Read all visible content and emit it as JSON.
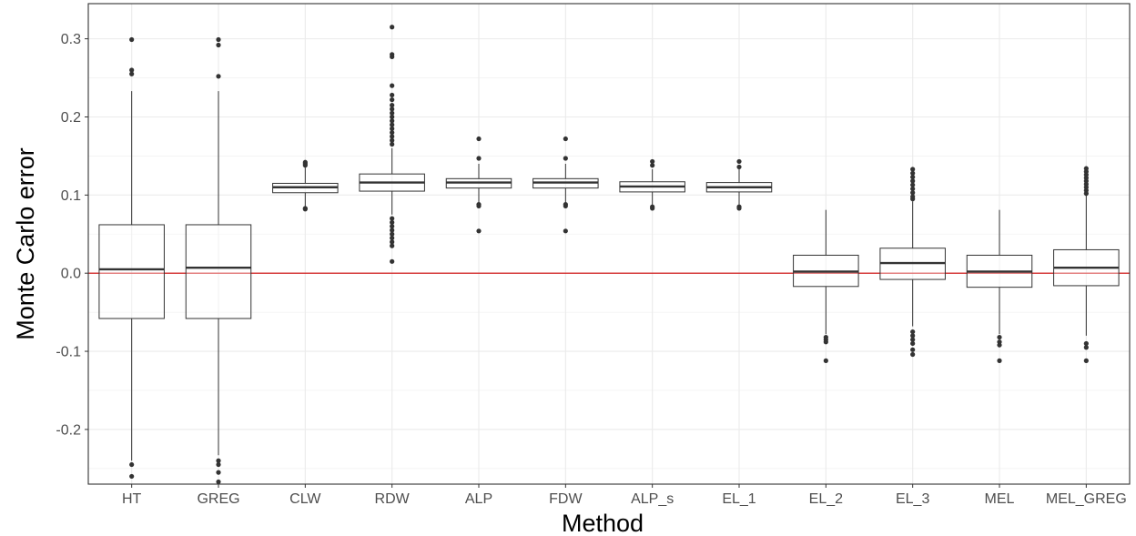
{
  "chart_data": {
    "type": "boxplot",
    "xlabel": "Method",
    "ylabel": "Monte Carlo error",
    "ylim": [
      -0.27,
      0.345
    ],
    "y_ticks": [
      -0.2,
      -0.1,
      0.0,
      0.1,
      0.2,
      0.3
    ],
    "y_tick_labels": [
      "-0.2",
      "-0.1",
      "0.0",
      "0.1",
      "0.2",
      "0.3"
    ],
    "grid": true,
    "reference_line": {
      "y": 0,
      "color": "#cc0000"
    },
    "box_fill": "#ffffff",
    "box_stroke": "#333333",
    "categories": [
      "HT",
      "GREG",
      "CLW",
      "RDW",
      "ALP",
      "FDW",
      "ALP_s",
      "EL_1",
      "EL_2",
      "EL_3",
      "MEL",
      "MEL_GREG"
    ],
    "boxes": [
      {
        "label": "HT",
        "whisker_low": -0.24,
        "q1": -0.058,
        "median": 0.005,
        "q3": 0.062,
        "whisker_high": 0.233,
        "outliers": [
          0.299,
          0.26,
          0.255,
          -0.245,
          -0.26
        ]
      },
      {
        "label": "GREG",
        "whisker_low": -0.233,
        "q1": -0.058,
        "median": 0.007,
        "q3": 0.062,
        "whisker_high": 0.233,
        "outliers": [
          0.299,
          0.292,
          0.252,
          -0.24,
          -0.245,
          -0.255,
          -0.267
        ]
      },
      {
        "label": "CLW",
        "whisker_low": 0.085,
        "q1": 0.103,
        "median": 0.11,
        "q3": 0.115,
        "whisker_high": 0.135,
        "outliers": [
          0.142,
          0.14,
          0.138,
          0.083,
          0.082
        ]
      },
      {
        "label": "RDW",
        "whisker_low": 0.075,
        "q1": 0.105,
        "median": 0.116,
        "q3": 0.127,
        "whisker_high": 0.16,
        "outliers": [
          0.315,
          0.28,
          0.277,
          0.24,
          0.228,
          0.222,
          0.215,
          0.21,
          0.205,
          0.2,
          0.195,
          0.19,
          0.185,
          0.18,
          0.175,
          0.17,
          0.165,
          0.07,
          0.065,
          0.06,
          0.055,
          0.05,
          0.045,
          0.04,
          0.035,
          0.015
        ]
      },
      {
        "label": "ALP",
        "whisker_low": 0.09,
        "q1": 0.109,
        "median": 0.116,
        "q3": 0.121,
        "whisker_high": 0.14,
        "outliers": [
          0.172,
          0.147,
          0.088,
          0.086,
          0.054
        ]
      },
      {
        "label": "FDW",
        "whisker_low": 0.09,
        "q1": 0.109,
        "median": 0.116,
        "q3": 0.121,
        "whisker_high": 0.14,
        "outliers": [
          0.172,
          0.147,
          0.088,
          0.086,
          0.054
        ]
      },
      {
        "label": "ALP_s",
        "whisker_low": 0.087,
        "q1": 0.104,
        "median": 0.111,
        "q3": 0.117,
        "whisker_high": 0.133,
        "outliers": [
          0.143,
          0.138,
          0.085,
          0.083
        ]
      },
      {
        "label": "EL_1",
        "whisker_low": 0.087,
        "q1": 0.104,
        "median": 0.11,
        "q3": 0.116,
        "whisker_high": 0.133,
        "outliers": [
          0.143,
          0.136,
          0.085,
          0.083
        ]
      },
      {
        "label": "EL_2",
        "whisker_low": -0.078,
        "q1": -0.017,
        "median": 0.002,
        "q3": 0.023,
        "whisker_high": 0.081,
        "outliers": [
          -0.082,
          -0.085,
          -0.088,
          -0.112
        ]
      },
      {
        "label": "EL_3",
        "whisker_low": -0.068,
        "q1": -0.008,
        "median": 0.013,
        "q3": 0.032,
        "whisker_high": 0.092,
        "outliers": [
          0.133,
          0.128,
          0.123,
          0.118,
          0.113,
          0.108,
          0.103,
          0.098,
          0.095,
          -0.075,
          -0.08,
          -0.085,
          -0.09,
          -0.098,
          -0.104
        ]
      },
      {
        "label": "MEL",
        "whisker_low": -0.078,
        "q1": -0.018,
        "median": 0.002,
        "q3": 0.023,
        "whisker_high": 0.081,
        "outliers": [
          -0.082,
          -0.088,
          -0.092,
          -0.112
        ]
      },
      {
        "label": "MEL_GREG",
        "whisker_low": -0.08,
        "q1": -0.016,
        "median": 0.007,
        "q3": 0.03,
        "whisker_high": 0.1,
        "outliers": [
          0.134,
          0.13,
          0.126,
          0.122,
          0.118,
          0.114,
          0.11,
          0.106,
          0.102,
          -0.09,
          -0.095,
          -0.112
        ]
      }
    ]
  }
}
